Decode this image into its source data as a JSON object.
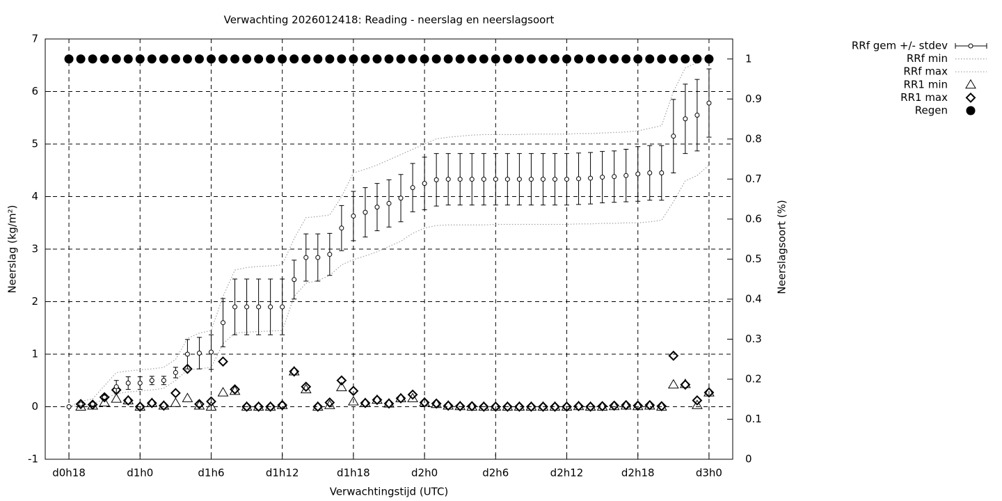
{
  "chart_data": {
    "type": "errorbar",
    "title": "Verwachting 2026012418: Reading - neerslag en neerslagsoort",
    "xlabel": "Verwachtingstijd (UTC)",
    "ylabel": "Neerslag (kg/m²)",
    "y2label": "Neerslagsoort (%)",
    "grid": true,
    "legend": "outside-right",
    "x": [
      18,
      19,
      20,
      21,
      22,
      23,
      24,
      25,
      26,
      27,
      28,
      29,
      30,
      31,
      32,
      33,
      34,
      35,
      36,
      37,
      38,
      39,
      40,
      41,
      42,
      43,
      44,
      45,
      46,
      47,
      48,
      49,
      50,
      51,
      52,
      53,
      54,
      55,
      56,
      57,
      58,
      59,
      60,
      61,
      62,
      63,
      64,
      65,
      66,
      67,
      68,
      69,
      70,
      71,
      72
    ],
    "xlim": [
      16,
      74
    ],
    "xticks": [
      {
        "value": 18,
        "label": "d0h18"
      },
      {
        "value": 24,
        "label": "d1h0"
      },
      {
        "value": 30,
        "label": "d1h6"
      },
      {
        "value": 36,
        "label": "d1h12"
      },
      {
        "value": 42,
        "label": "d1h18"
      },
      {
        "value": 48,
        "label": "d2h0"
      },
      {
        "value": 54,
        "label": "d2h6"
      },
      {
        "value": 60,
        "label": "d2h12"
      },
      {
        "value": 66,
        "label": "d2h18"
      },
      {
        "value": 72,
        "label": "d3h0"
      }
    ],
    "ylim": [
      -1,
      7
    ],
    "yticks": [
      -1,
      0,
      1,
      2,
      3,
      4,
      5,
      6,
      7
    ],
    "y2lim": [
      0,
      1.05
    ],
    "y2ticks": [
      0,
      0.1,
      0.2,
      0.3,
      0.4,
      0.5,
      0.6,
      0.7,
      0.8,
      0.9,
      1
    ],
    "series": [
      {
        "name": "RRf gem +/- stdev",
        "type": "errorbar",
        "color": "#000000",
        "values": [
          0,
          0.05,
          0.05,
          0.18,
          0.38,
          0.45,
          0.45,
          0.5,
          0.5,
          0.65,
          1.0,
          1.02,
          1.04,
          1.6,
          1.9,
          1.9,
          1.9,
          1.9,
          1.9,
          2.42,
          2.84,
          2.84,
          2.9,
          3.4,
          3.63,
          3.7,
          3.8,
          3.87,
          3.97,
          4.17,
          4.25,
          4.32,
          4.33,
          4.33,
          4.33,
          4.33,
          4.33,
          4.33,
          4.33,
          4.33,
          4.33,
          4.33,
          4.33,
          4.34,
          4.35,
          4.37,
          4.38,
          4.4,
          4.43,
          4.45,
          4.45,
          5.15,
          5.48,
          5.55,
          5.78
        ],
        "errors": [
          0,
          0.03,
          0.03,
          0.05,
          0.12,
          0.12,
          0.12,
          0.08,
          0.08,
          0.1,
          0.28,
          0.3,
          0.33,
          0.46,
          0.53,
          0.53,
          0.53,
          0.53,
          0.53,
          0.37,
          0.45,
          0.45,
          0.4,
          0.43,
          0.47,
          0.47,
          0.45,
          0.45,
          0.45,
          0.46,
          0.5,
          0.5,
          0.49,
          0.49,
          0.49,
          0.49,
          0.49,
          0.49,
          0.49,
          0.49,
          0.49,
          0.49,
          0.49,
          0.49,
          0.49,
          0.49,
          0.49,
          0.5,
          0.52,
          0.52,
          0.52,
          0.7,
          0.66,
          0.68,
          0.65
        ]
      },
      {
        "name": "RRf min",
        "type": "dotted",
        "color": "#a0a0a0",
        "values": [
          0,
          0.02,
          0.05,
          0.15,
          0.25,
          0.28,
          0.3,
          0.32,
          0.35,
          0.5,
          0.7,
          0.72,
          0.75,
          1.2,
          1.4,
          1.42,
          1.43,
          1.44,
          1.45,
          2.1,
          2.35,
          2.4,
          2.5,
          2.7,
          2.8,
          2.87,
          2.95,
          3.05,
          3.15,
          3.3,
          3.4,
          3.45,
          3.46,
          3.46,
          3.46,
          3.46,
          3.47,
          3.47,
          3.47,
          3.47,
          3.47,
          3.47,
          3.47,
          3.48,
          3.48,
          3.49,
          3.49,
          3.5,
          3.5,
          3.52,
          3.55,
          3.9,
          4.3,
          4.4,
          4.6
        ]
      },
      {
        "name": "RRf max",
        "type": "dotted",
        "color": "#a0a0a0",
        "values": [
          0,
          0.1,
          0.15,
          0.4,
          0.65,
          0.68,
          0.7,
          0.72,
          0.75,
          0.9,
          1.3,
          1.4,
          1.45,
          2.1,
          2.6,
          2.65,
          2.67,
          2.68,
          2.7,
          3.2,
          3.6,
          3.62,
          3.65,
          4.0,
          4.45,
          4.52,
          4.6,
          4.7,
          4.8,
          4.9,
          5.0,
          5.1,
          5.13,
          5.15,
          5.17,
          5.18,
          5.18,
          5.18,
          5.18,
          5.19,
          5.19,
          5.19,
          5.19,
          5.2,
          5.2,
          5.21,
          5.22,
          5.23,
          5.25,
          5.3,
          5.35,
          6.0,
          6.45,
          6.55,
          6.7
        ]
      },
      {
        "name": "RR1 min",
        "type": "triangle",
        "color": "#000000",
        "values": [
          null,
          0,
          0.02,
          0.08,
          0.15,
          0.12,
          0,
          0.07,
          0.02,
          0.07,
          0.16,
          0.02,
          0,
          0.27,
          0.3,
          0,
          0,
          0,
          0.03,
          0.67,
          0.33,
          0,
          0.03,
          0.37,
          0.1,
          0.07,
          0.13,
          0.06,
          0.16,
          0.16,
          0.08,
          0.05,
          0.02,
          0.01,
          0,
          0,
          0,
          0,
          0,
          0,
          0,
          0,
          0,
          0.01,
          0,
          0,
          0.01,
          0.02,
          0.01,
          0.02,
          0,
          0.42,
          0.43,
          0.03,
          0.27
        ]
      },
      {
        "name": "RR1 max",
        "type": "diamond",
        "color": "#000000",
        "values": [
          null,
          0.05,
          0.04,
          0.18,
          0.32,
          0.12,
          0,
          0.07,
          0.02,
          0.26,
          0.72,
          0.05,
          0.1,
          0.86,
          0.33,
          0,
          0,
          0,
          0.03,
          0.67,
          0.38,
          0,
          0.08,
          0.5,
          0.3,
          0.07,
          0.13,
          0.06,
          0.16,
          0.23,
          0.08,
          0.06,
          0.02,
          0.01,
          0.01,
          0,
          0,
          0,
          0,
          0,
          0,
          0,
          0,
          0.01,
          0,
          0.01,
          0.02,
          0.03,
          0.02,
          0.03,
          0.01,
          0.97,
          0.42,
          0.12,
          0.27
        ]
      },
      {
        "name": "Regen",
        "type": "circle",
        "axis": "y2",
        "color": "#000000",
        "values": [
          1,
          1,
          1,
          1,
          1,
          1,
          1,
          1,
          1,
          1,
          1,
          1,
          1,
          1,
          1,
          1,
          1,
          1,
          1,
          1,
          1,
          1,
          1,
          1,
          1,
          1,
          1,
          1,
          1,
          1,
          1,
          1,
          1,
          1,
          1,
          1,
          1,
          1,
          1,
          1,
          1,
          1,
          1,
          1,
          1,
          1,
          1,
          1,
          1,
          1,
          1,
          1,
          1,
          1,
          1
        ]
      }
    ]
  }
}
